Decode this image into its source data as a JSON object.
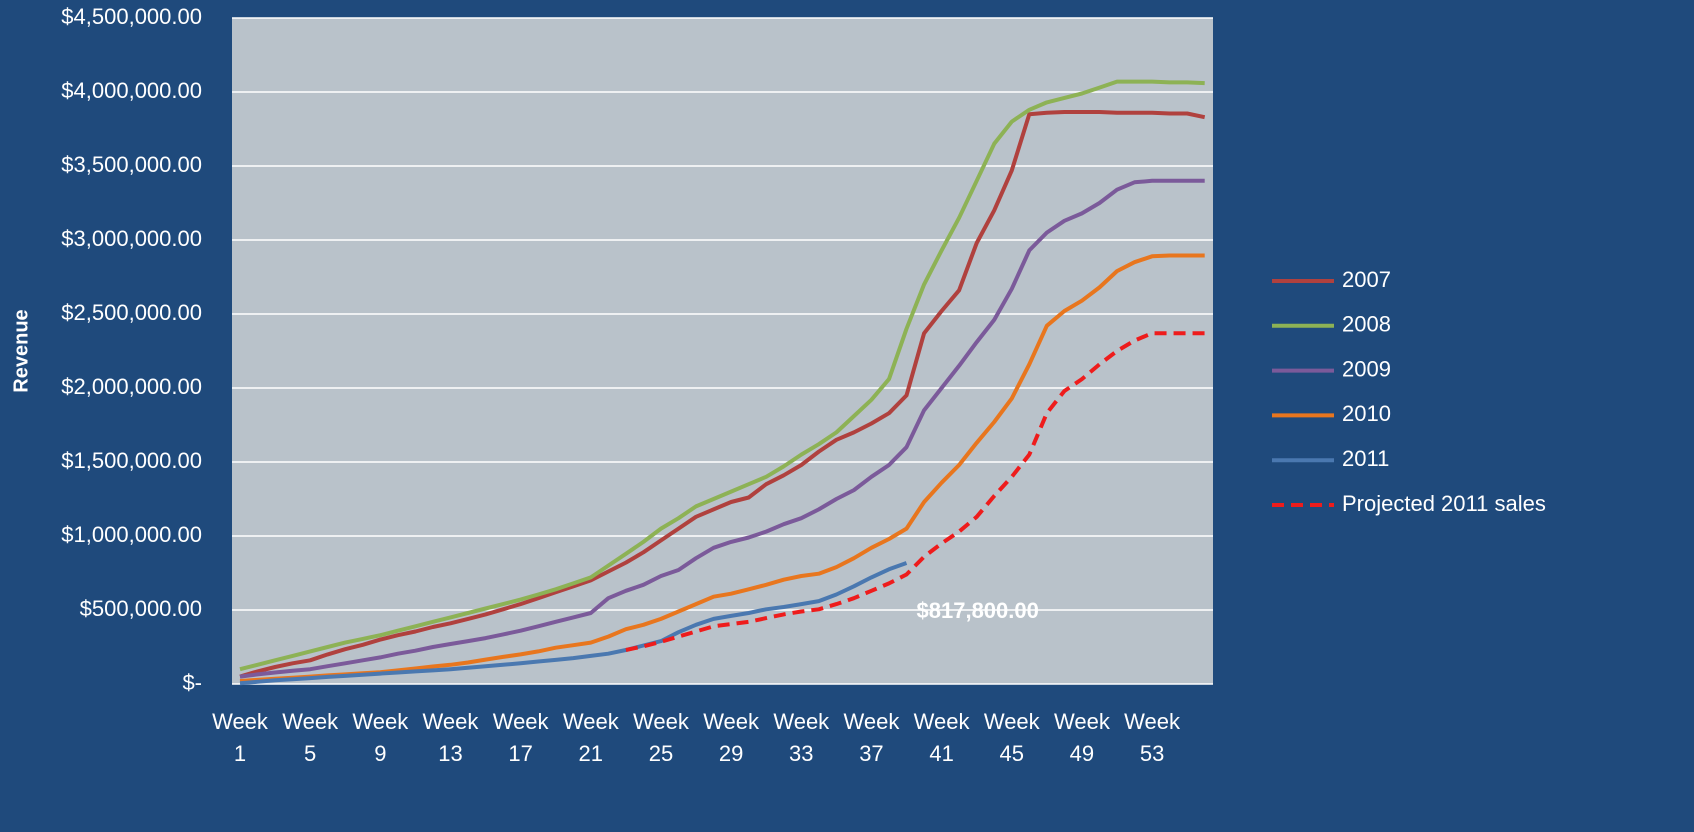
{
  "chart_data": {
    "type": "line",
    "y_label": "Revenue",
    "categories": [
      "Week 1",
      null,
      null,
      null,
      "Week 5",
      null,
      null,
      null,
      "Week 9",
      null,
      null,
      null,
      "Week 13",
      null,
      null,
      null,
      "Week 17",
      null,
      null,
      null,
      "Week 21",
      null,
      null,
      null,
      "Week 25",
      null,
      null,
      null,
      "Week 29",
      null,
      null,
      null,
      "Week 33",
      null,
      null,
      null,
      "Week 37",
      null,
      null,
      null,
      "Week 41",
      null,
      null,
      null,
      "Week 45",
      null,
      null,
      null,
      "Week 49",
      null,
      null,
      null,
      "Week 53",
      null,
      null,
      null
    ],
    "series": [
      {
        "name": "2007",
        "color": "#b0413e",
        "values": [
          50000,
          85000,
          115000,
          140000,
          160000,
          200000,
          235000,
          265000,
          300000,
          330000,
          355000,
          385000,
          410000,
          440000,
          470000,
          505000,
          540000,
          580000,
          620000,
          660000,
          700000,
          760000,
          820000,
          890000,
          970000,
          1050000,
          1130000,
          1180000,
          1230000,
          1260000,
          1350000,
          1410000,
          1480000,
          1570000,
          1650000,
          1700000,
          1760000,
          1830000,
          1950000,
          2370000,
          2520000,
          2660000,
          2980000,
          3200000,
          3470000,
          3850000,
          3860000,
          3865000,
          3865000,
          3865000,
          3860000,
          3860000,
          3860000,
          3855000,
          3855000,
          3830000
        ]
      },
      {
        "name": "2008",
        "color": "#8db255",
        "values": [
          100000,
          130000,
          160000,
          190000,
          220000,
          250000,
          280000,
          305000,
          330000,
          360000,
          390000,
          420000,
          450000,
          480000,
          510000,
          540000,
          570000,
          605000,
          640000,
          680000,
          720000,
          800000,
          880000,
          960000,
          1050000,
          1120000,
          1200000,
          1250000,
          1300000,
          1350000,
          1400000,
          1470000,
          1550000,
          1620000,
          1700000,
          1810000,
          1920000,
          2060000,
          2400000,
          2700000,
          2930000,
          3150000,
          3400000,
          3650000,
          3800000,
          3880000,
          3930000,
          3960000,
          3990000,
          4030000,
          4070000,
          4070000,
          4070000,
          4065000,
          4065000,
          4060000
        ]
      },
      {
        "name": "2009",
        "color": "#7b5a9a",
        "values": [
          50000,
          65000,
          78000,
          90000,
          100000,
          120000,
          140000,
          160000,
          180000,
          205000,
          225000,
          250000,
          270000,
          290000,
          310000,
          335000,
          360000,
          390000,
          420000,
          450000,
          480000,
          580000,
          630000,
          670000,
          730000,
          770000,
          850000,
          920000,
          960000,
          990000,
          1030000,
          1080000,
          1120000,
          1180000,
          1250000,
          1310000,
          1400000,
          1480000,
          1600000,
          1850000,
          2000000,
          2150000,
          2310000,
          2460000,
          2670000,
          2930000,
          3050000,
          3130000,
          3180000,
          3250000,
          3340000,
          3390000,
          3400000,
          3400000,
          3400000,
          3400000
        ]
      },
      {
        "name": "2010",
        "color": "#e8761e",
        "values": [
          20000,
          28000,
          35000,
          42000,
          50000,
          58000,
          65000,
          72000,
          80000,
          92000,
          105000,
          118000,
          130000,
          145000,
          165000,
          183000,
          200000,
          220000,
          245000,
          262000,
          280000,
          320000,
          370000,
          400000,
          440000,
          490000,
          540000,
          590000,
          610000,
          640000,
          670000,
          705000,
          730000,
          745000,
          790000,
          850000,
          920000,
          980000,
          1050000,
          1230000,
          1360000,
          1480000,
          1630000,
          1770000,
          1930000,
          2160000,
          2420000,
          2520000,
          2590000,
          2680000,
          2790000,
          2850000,
          2890000,
          2895000,
          2895000,
          2895000
        ]
      },
      {
        "name": "2011",
        "color": "#4a78b0",
        "values": [
          5000,
          15000,
          25000,
          32000,
          40000,
          48000,
          55000,
          62000,
          70000,
          78000,
          85000,
          92000,
          100000,
          110000,
          120000,
          130000,
          140000,
          152000,
          163000,
          175000,
          190000,
          205000,
          230000,
          260000,
          290000,
          350000,
          400000,
          440000,
          460000,
          480000,
          505000,
          520000,
          540000,
          560000,
          605000,
          660000,
          720000,
          775000,
          817800,
          null,
          null,
          null,
          null,
          null,
          null,
          null,
          null,
          null,
          null,
          null,
          null,
          null,
          null,
          null,
          null,
          null
        ]
      },
      {
        "name": "Projected 2011 sales",
        "color": "#ee1c1c",
        "dashed": true,
        "values": [
          null,
          null,
          null,
          null,
          null,
          null,
          null,
          null,
          null,
          null,
          null,
          null,
          null,
          null,
          null,
          null,
          null,
          null,
          null,
          null,
          null,
          null,
          230000,
          255000,
          285000,
          320000,
          355000,
          390000,
          405000,
          420000,
          445000,
          470000,
          490000,
          505000,
          540000,
          580000,
          630000,
          680000,
          740000,
          860000,
          950000,
          1030000,
          1130000,
          1270000,
          1400000,
          1550000,
          1830000,
          1980000,
          2060000,
          2160000,
          2250000,
          2320000,
          2370000,
          2370000,
          2370000,
          2370000
        ]
      }
    ],
    "annotation": {
      "text": "$817,800.00",
      "series": 4,
      "index": 38
    },
    "ylim": [
      0,
      4500000
    ],
    "yticks": [
      {
        "value": 0,
        "label": "$-"
      },
      {
        "value": 500000,
        "label": "$500,000.00"
      },
      {
        "value": 1000000,
        "label": "$1,000,000.00"
      },
      {
        "value": 1500000,
        "label": "$1,500,000.00"
      },
      {
        "value": 2000000,
        "label": "$2,000,000.00"
      },
      {
        "value": 2500000,
        "label": "$2,500,000.00"
      },
      {
        "value": 3000000,
        "label": "$3,000,000.00"
      },
      {
        "value": 3500000,
        "label": "$3,500,000.00"
      },
      {
        "value": 4000000,
        "label": "$4,000,000.00"
      },
      {
        "value": 4500000,
        "label": "$4,500,000.00"
      }
    ],
    "grid": true,
    "legend": "right"
  }
}
